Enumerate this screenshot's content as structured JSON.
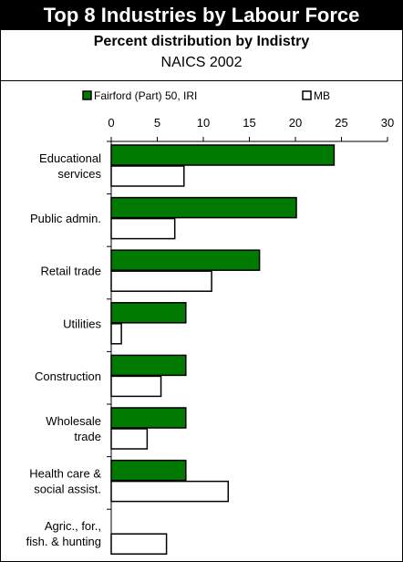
{
  "header": {
    "title": "Top 8 Industries by Labour Force",
    "subtitle": "Percent distribution by Indistry",
    "subtitle2": "NAICS 2002"
  },
  "colors": {
    "series1": "#007a00",
    "series2": "#ffffff",
    "outline": "#000000"
  },
  "chart_data": {
    "type": "bar",
    "orientation": "horizontal",
    "title": "Top 8 Industries by Labour Force",
    "subtitle": "Percent distribution by Indistry",
    "xlim": [
      0,
      30
    ],
    "xticks": [
      0,
      5,
      10,
      15,
      20,
      25,
      30
    ],
    "grid": false,
    "legend_position": "top",
    "categories": [
      [
        "Educational",
        "services"
      ],
      [
        "Public admin."
      ],
      [
        "Retail trade"
      ],
      [
        "Utilities"
      ],
      [
        "Construction"
      ],
      [
        "Wholesale",
        "trade"
      ],
      [
        "Health care &",
        "social assist."
      ],
      [
        "Agric., for.,",
        "fish. & hunting"
      ]
    ],
    "series": [
      {
        "name": "Fairford (Part) 50, IRI",
        "color": "#007a00",
        "values": [
          24.2,
          20.1,
          16.1,
          8.1,
          8.1,
          8.1,
          8.1,
          0
        ]
      },
      {
        "name": "MB",
        "color": "#ffffff",
        "values": [
          7.9,
          6.9,
          10.9,
          1.1,
          5.4,
          3.9,
          12.7,
          6.0
        ]
      }
    ]
  }
}
